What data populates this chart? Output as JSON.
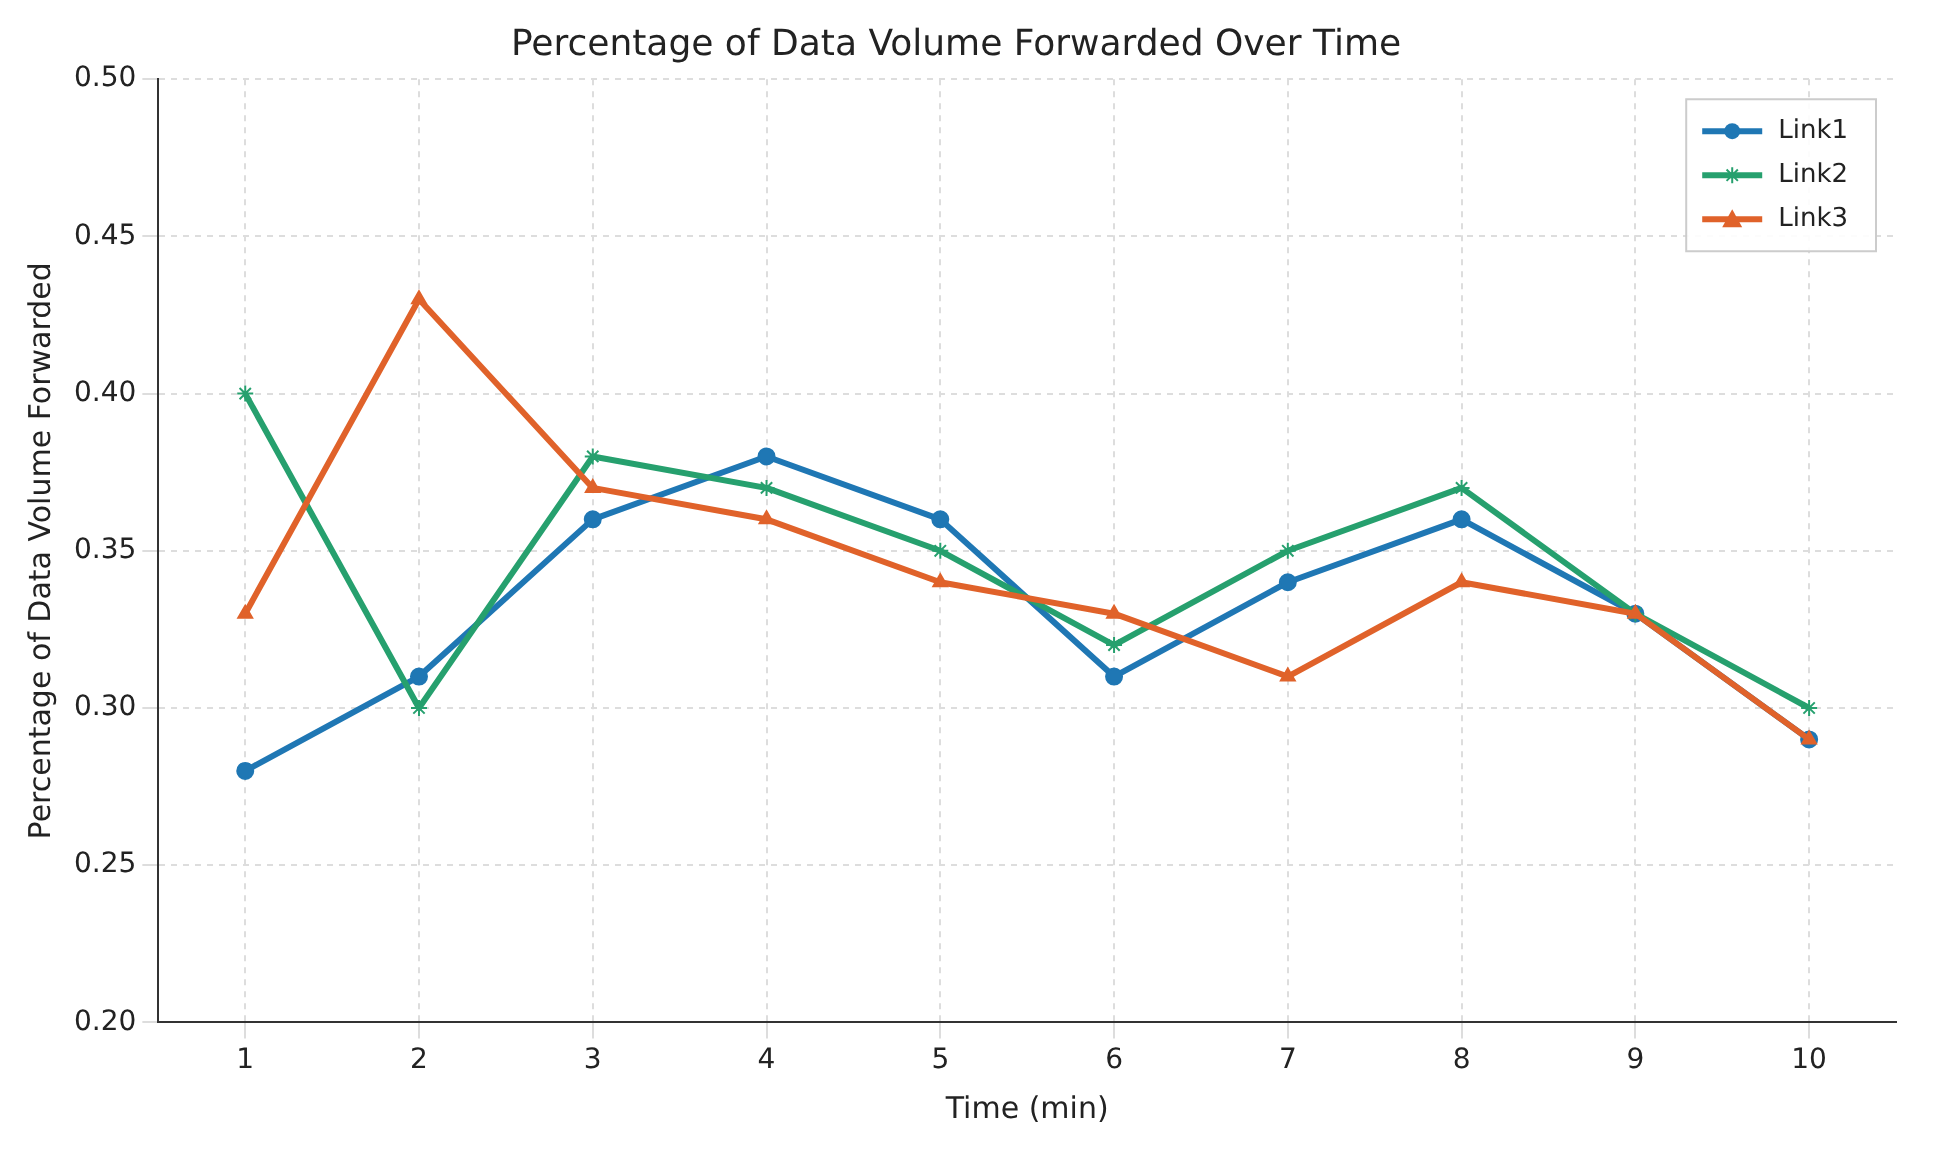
{
  "chart_data": {
    "type": "line",
    "title": "Percentage of Data Volume Forwarded Over Time",
    "xlabel": "Time (min)",
    "ylabel": "Percentage of Data Volume Forwarded",
    "categories": [
      "1",
      "2",
      "3",
      "4",
      "5",
      "6",
      "7",
      "8",
      "9",
      "10"
    ],
    "series": [
      {
        "name": "Link1",
        "color": "#1f77b4",
        "marker": "circle",
        "values": [
          0.28,
          0.31,
          0.36,
          0.38,
          0.36,
          0.31,
          0.34,
          0.36,
          0.33,
          0.29
        ]
      },
      {
        "name": "Link2",
        "color": "#26a06e",
        "marker": "cross",
        "values": [
          0.4,
          0.3,
          0.38,
          0.37,
          0.35,
          0.32,
          0.35,
          0.37,
          0.33,
          0.3
        ]
      },
      {
        "name": "Link3",
        "color": "#e0622a",
        "marker": "triangle",
        "values": [
          0.33,
          0.43,
          0.37,
          0.36,
          0.34,
          0.33,
          0.31,
          0.34,
          0.33,
          0.29
        ]
      }
    ],
    "ylim": [
      0.2,
      0.5
    ],
    "yticks": [
      {
        "value": 0.2,
        "label": "0.20"
      },
      {
        "value": 0.25,
        "label": "0.25"
      },
      {
        "value": 0.3,
        "label": "0.30"
      },
      {
        "value": 0.35,
        "label": "0.35"
      },
      {
        "value": 0.4,
        "label": "0.40"
      },
      {
        "value": 0.45,
        "label": "0.45"
      },
      {
        "value": 0.5,
        "label": "0.50"
      }
    ],
    "grid": true,
    "legend": "top right",
    "line_style": "solid"
  }
}
